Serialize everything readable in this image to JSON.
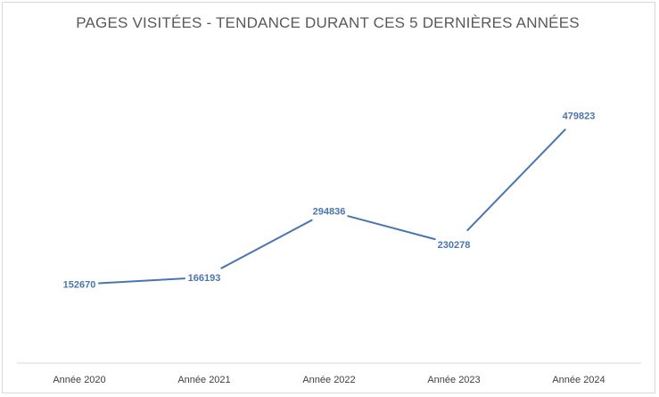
{
  "chart_data": {
    "type": "line",
    "title": "PAGES VISITÉES - TENDANCE DURANT CES 5 DERNIÈRES ANNÉES",
    "categories": [
      "Année 2020",
      "Année 2021",
      "Année 2022",
      "Année 2023",
      "Année 2024"
    ],
    "series": [
      {
        "name": "Pages visitées",
        "values": [
          152670,
          166193,
          294836,
          230278,
          479823
        ]
      }
    ],
    "xlabel": "",
    "ylabel": "",
    "ylim": [
      0,
      600000
    ],
    "grid": false,
    "legend": "none",
    "line_color": "#4a76ad",
    "label_color": "#4a76ad",
    "axis_color": "#d9d9d9"
  }
}
